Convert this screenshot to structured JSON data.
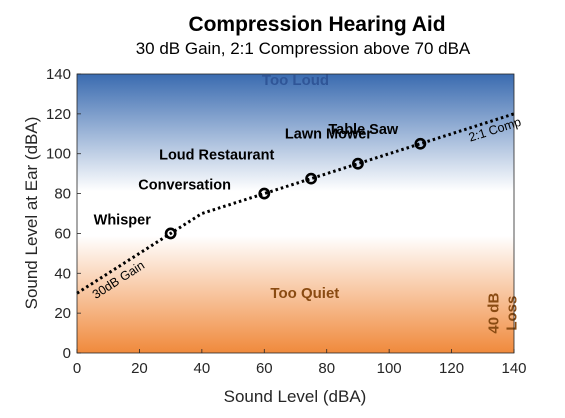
{
  "chart_data": {
    "type": "line",
    "title": "Compression Hearing Aid",
    "subtitle": "30 dB Gain, 2:1 Compression above 70 dBA",
    "xlabel": "Sound Level (dBA)",
    "ylabel": "Sound Level at Ear (dBA)",
    "xlim": [
      0,
      140
    ],
    "ylim": [
      0,
      140
    ],
    "xticks": [
      0,
      20,
      40,
      60,
      80,
      100,
      120,
      140
    ],
    "yticks": [
      0,
      20,
      40,
      60,
      80,
      100,
      120,
      140
    ],
    "grid": false,
    "series": [
      {
        "x": [
          0,
          40,
          140
        ],
        "y": [
          30,
          70,
          120
        ],
        "style": "dotted",
        "color": "#000000"
      }
    ],
    "points": [
      {
        "label": "Whisper",
        "x": 30,
        "y": 60
      },
      {
        "label": "Conversation",
        "x": 60,
        "y": 80
      },
      {
        "label": "Loud Restaurant",
        "x": 75,
        "y": 87.5
      },
      {
        "label": "Lawn Mower",
        "x": 90,
        "y": 95
      },
      {
        "label": "Table Saw",
        "x": 110,
        "y": 105
      }
    ],
    "regions": [
      {
        "label": "Too Loud",
        "color": "#2f5597",
        "x": 70,
        "y": 137
      },
      {
        "label": "Too Quiet",
        "color": "#8a4b12",
        "x": 73,
        "y": 30
      },
      {
        "label": "40 dB Loss",
        "color": "#8a4b12",
        "x": 135,
        "y": 20
      }
    ],
    "line_labels": [
      {
        "label": "30dB Gain",
        "x": 6,
        "y": 27
      },
      {
        "label": "2:1 Comp",
        "x": 126,
        "y": 106
      }
    ],
    "background": {
      "top_color": "#3a6bb0",
      "middle_color": "#ffffff",
      "bottom_color": "#f08a3c"
    }
  }
}
